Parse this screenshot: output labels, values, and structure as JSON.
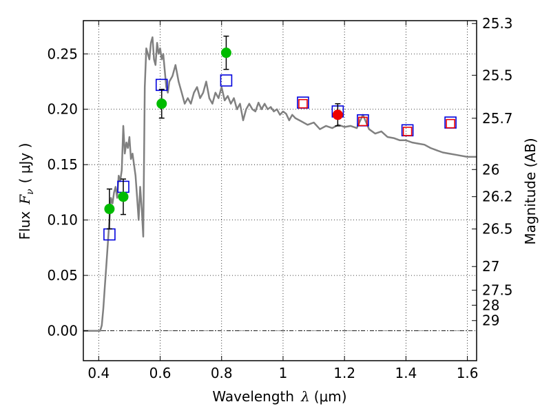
{
  "chart_data": {
    "type": "scatter",
    "xlabel": "Wavelength",
    "xlabel_symbol": "λ",
    "xlabel_unit": "(μm)",
    "ylabel": "Flux",
    "ylabel_symbol": "F",
    "ylabel_subscript": "ν",
    "ylabel_unit": "( μJy )",
    "y2label": "Magnitude (AB)",
    "xlim": [
      0.35,
      1.63
    ],
    "ylim": [
      -0.027,
      0.28
    ],
    "grid": true,
    "x_ticks": [
      0.4,
      0.6,
      0.8,
      1.0,
      1.2,
      1.4,
      1.6
    ],
    "x_tick_labels": [
      "0.4",
      "0.6",
      "0.8",
      "1",
      "1.2",
      "1.4",
      "1.6"
    ],
    "y_ticks": [
      0.0,
      0.05,
      0.1,
      0.15,
      0.2,
      0.25
    ],
    "y_tick_labels": [
      "0.00",
      "0.05",
      "0.10",
      "0.15",
      "0.20",
      "0.25"
    ],
    "mag_ticks": [
      {
        "label": "25.3",
        "flux": 0.2774
      },
      {
        "label": "25.5",
        "flux": 0.2307
      },
      {
        "label": "25.7",
        "flux": 0.1919
      },
      {
        "label": "26",
        "flux": 0.1456
      },
      {
        "label": "26.2",
        "flux": 0.1211
      },
      {
        "label": "26.5",
        "flux": 0.0919
      },
      {
        "label": "27",
        "flux": 0.058
      },
      {
        "label": "27.5",
        "flux": 0.0366
      },
      {
        "label": "28",
        "flux": 0.0231
      },
      {
        "label": "29",
        "flux": 0.0092
      }
    ],
    "series": [
      {
        "name": "model SED",
        "kind": "line",
        "color": "#808080",
        "x": [
          0.35,
          0.405,
          0.41,
          0.415,
          0.42,
          0.425,
          0.43,
          0.435,
          0.44,
          0.445,
          0.45,
          0.455,
          0.46,
          0.465,
          0.47,
          0.475,
          0.48,
          0.485,
          0.49,
          0.495,
          0.5,
          0.505,
          0.51,
          0.515,
          0.52,
          0.525,
          0.53,
          0.535,
          0.54,
          0.545,
          0.55,
          0.555,
          0.56,
          0.565,
          0.57,
          0.575,
          0.58,
          0.585,
          0.59,
          0.595,
          0.6,
          0.605,
          0.61,
          0.615,
          0.62,
          0.625,
          0.63,
          0.64,
          0.65,
          0.66,
          0.67,
          0.68,
          0.69,
          0.7,
          0.71,
          0.72,
          0.73,
          0.74,
          0.75,
          0.76,
          0.77,
          0.78,
          0.79,
          0.8,
          0.81,
          0.82,
          0.83,
          0.84,
          0.85,
          0.86,
          0.87,
          0.88,
          0.89,
          0.9,
          0.91,
          0.92,
          0.93,
          0.94,
          0.95,
          0.96,
          0.97,
          0.98,
          0.99,
          1.0,
          1.01,
          1.02,
          1.03,
          1.04,
          1.06,
          1.08,
          1.1,
          1.12,
          1.14,
          1.16,
          1.18,
          1.2,
          1.22,
          1.24,
          1.26,
          1.28,
          1.3,
          1.32,
          1.34,
          1.36,
          1.38,
          1.4,
          1.42,
          1.44,
          1.46,
          1.48,
          1.5,
          1.52,
          1.54,
          1.56,
          1.58,
          1.6,
          1.63
        ],
        "values": [
          0.0,
          0.0,
          0.005,
          0.02,
          0.04,
          0.06,
          0.08,
          0.1,
          0.12,
          0.115,
          0.125,
          0.13,
          0.12,
          0.14,
          0.135,
          0.145,
          0.185,
          0.16,
          0.17,
          0.165,
          0.175,
          0.155,
          0.16,
          0.15,
          0.14,
          0.12,
          0.1,
          0.13,
          0.11,
          0.085,
          0.22,
          0.255,
          0.25,
          0.245,
          0.26,
          0.265,
          0.245,
          0.24,
          0.26,
          0.25,
          0.255,
          0.245,
          0.25,
          0.235,
          0.22,
          0.215,
          0.225,
          0.23,
          0.24,
          0.225,
          0.215,
          0.205,
          0.21,
          0.205,
          0.215,
          0.22,
          0.21,
          0.215,
          0.225,
          0.21,
          0.205,
          0.215,
          0.21,
          0.22,
          0.208,
          0.212,
          0.205,
          0.21,
          0.2,
          0.205,
          0.19,
          0.2,
          0.205,
          0.2,
          0.198,
          0.206,
          0.2,
          0.205,
          0.2,
          0.202,
          0.198,
          0.2,
          0.195,
          0.198,
          0.196,
          0.19,
          0.195,
          0.192,
          0.189,
          0.186,
          0.188,
          0.182,
          0.185,
          0.183,
          0.186,
          0.184,
          0.185,
          0.183,
          0.195,
          0.182,
          0.178,
          0.18,
          0.175,
          0.174,
          0.172,
          0.172,
          0.17,
          0.169,
          0.168,
          0.165,
          0.163,
          0.161,
          0.16,
          0.159,
          0.158,
          0.157,
          0.157
        ]
      },
      {
        "name": "photometry (green)",
        "kind": "point-errorbar",
        "color": "#00bb00",
        "x": [
          0.435,
          0.48,
          0.605,
          0.815
        ],
        "values": [
          0.11,
          0.121,
          0.205,
          0.251
        ],
        "errors": [
          0.018,
          0.016,
          0.013,
          0.015
        ]
      },
      {
        "name": "photometry (red)",
        "kind": "point-errorbar",
        "color": "#ee0000",
        "x": [
          1.178
        ],
        "values": [
          0.195
        ],
        "errors": [
          0.01
        ]
      },
      {
        "name": "model fluxes (blue squares)",
        "kind": "open-square",
        "color": "#0000dd",
        "x": [
          0.435,
          0.48,
          0.605,
          0.815,
          1.065,
          1.178,
          1.26,
          1.405,
          1.545
        ],
        "values": [
          0.087,
          0.13,
          0.222,
          0.226,
          0.206,
          0.198,
          0.19,
          0.181,
          0.188
        ]
      },
      {
        "name": "model fluxes (red squares)",
        "kind": "open-square",
        "color": "#ee0000",
        "x": [
          1.065,
          1.26,
          1.405,
          1.545
        ],
        "values": [
          0.205,
          0.189,
          0.18,
          0.187
        ]
      }
    ]
  }
}
